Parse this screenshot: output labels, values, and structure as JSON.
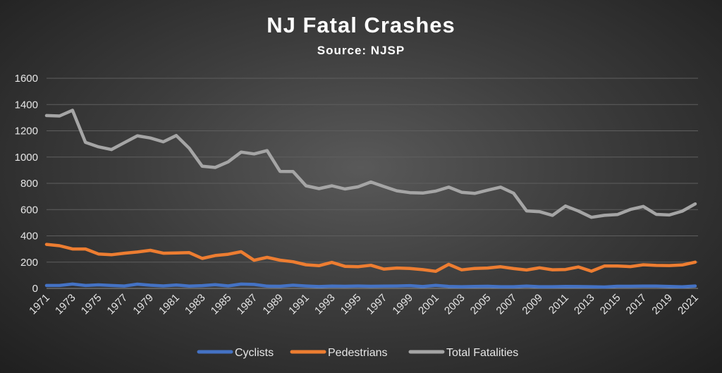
{
  "chart_data": {
    "type": "line",
    "title": "NJ Fatal Crashes",
    "subtitle": "Source: NJSP",
    "xlabel": "",
    "ylabel": "",
    "ylim": [
      0,
      1600
    ],
    "yticks": [
      0,
      200,
      400,
      600,
      800,
      1000,
      1200,
      1400,
      1600
    ],
    "grid": true,
    "legend_position": "bottom",
    "x": [
      1971,
      1972,
      1973,
      1974,
      1975,
      1976,
      1977,
      1978,
      1979,
      1980,
      1981,
      1982,
      1983,
      1984,
      1985,
      1986,
      1987,
      1988,
      1989,
      1990,
      1991,
      1992,
      1993,
      1994,
      1995,
      1996,
      1997,
      1998,
      1999,
      2000,
      2001,
      2002,
      2003,
      2004,
      2005,
      2006,
      2007,
      2008,
      2009,
      2010,
      2011,
      2012,
      2013,
      2014,
      2015,
      2016,
      2017,
      2018,
      2019,
      2020,
      2021
    ],
    "xtick_labels": [
      "1971",
      "1973",
      "1975",
      "1977",
      "1979",
      "1981",
      "1983",
      "1985",
      "1987",
      "1989",
      "1991",
      "1993",
      "1995",
      "1997",
      "1999",
      "2001",
      "2003",
      "2005",
      "2007",
      "2009",
      "2011",
      "2013",
      "2015",
      "2017",
      "2019",
      "2021"
    ],
    "series": [
      {
        "name": "Cyclists",
        "color": "#4472c4",
        "values": [
          22,
          22,
          33,
          22,
          27,
          22,
          18,
          32,
          24,
          19,
          26,
          17,
          21,
          28,
          19,
          33,
          30,
          17,
          16,
          24,
          18,
          14,
          17,
          16,
          18,
          16,
          17,
          18,
          21,
          14,
          23,
          15,
          13,
          15,
          16,
          13,
          13,
          17,
          13,
          13,
          15,
          14,
          13,
          11,
          16,
          16,
          17,
          17,
          15,
          12,
          18
        ]
      },
      {
        "name": "Pedestrians",
        "color": "#ed7d31",
        "values": [
          335,
          325,
          300,
          300,
          262,
          256,
          268,
          277,
          290,
          268,
          270,
          272,
          228,
          250,
          260,
          279,
          214,
          236,
          215,
          203,
          180,
          173,
          198,
          168,
          165,
          176,
          147,
          155,
          152,
          143,
          130,
          183,
          141,
          152,
          155,
          165,
          151,
          140,
          157,
          142,
          144,
          163,
          131,
          170,
          171,
          166,
          180,
          175,
          174,
          178,
          200
        ]
      },
      {
        "name": "Total Fatalities",
        "color": "#a5a5a5",
        "values": [
          1316,
          1313,
          1356,
          1112,
          1078,
          1057,
          1110,
          1162,
          1145,
          1116,
          1164,
          1067,
          930,
          921,
          963,
          1038,
          1024,
          1049,
          891,
          890,
          781,
          760,
          781,
          757,
          773,
          810,
          776,
          743,
          729,
          726,
          741,
          771,
          732,
          723,
          748,
          771,
          725,
          590,
          584,
          556,
          627,
          589,
          541,
          556,
          562,
          601,
          624,
          564,
          559,
          588,
          643
        ]
      }
    ]
  }
}
